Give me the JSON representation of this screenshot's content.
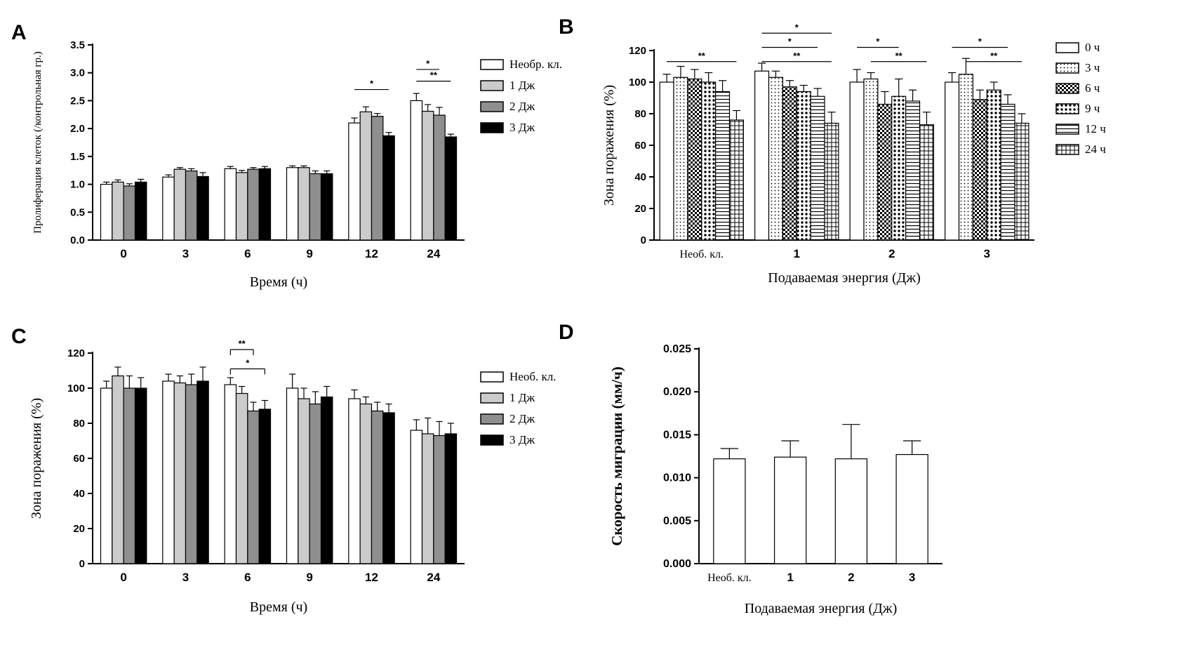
{
  "panels": {
    "a_label": "A",
    "b_label": "B",
    "c_label": "C",
    "d_label": "D"
  },
  "colors": {
    "control_fill": "#ffffff",
    "one_j_fill": "#cbcbcb",
    "two_j_fill": "#8f8f8f",
    "three_j_fill": "#000000",
    "axis": "#000000"
  },
  "chart_data": [
    {
      "panel": "A",
      "type": "bar",
      "title": "",
      "xlabel": "Время (ч)",
      "ylabel": "Пролиферация клеток (/контрольная гр.)",
      "ylim": [
        0,
        3.5
      ],
      "yticks": [
        "0.0",
        "0.5",
        "1.0",
        "1.5",
        "2.0",
        "2.5",
        "3.0",
        "3.5"
      ],
      "categories": [
        "0",
        "3",
        "6",
        "9",
        "12",
        "24"
      ],
      "series": [
        {
          "name": "Необр. кл.",
          "fill": "#ffffff",
          "values": [
            1.0,
            1.13,
            1.28,
            1.3,
            2.1,
            2.5
          ],
          "errors": [
            0.04,
            0.04,
            0.04,
            0.03,
            0.09,
            0.13
          ]
        },
        {
          "name": "1 Дж",
          "fill": "#cbcbcb",
          "values": [
            1.04,
            1.27,
            1.21,
            1.3,
            2.3,
            2.31
          ],
          "errors": [
            0.04,
            0.03,
            0.04,
            0.03,
            0.09,
            0.12
          ]
        },
        {
          "name": "2 Дж",
          "fill": "#8f8f8f",
          "values": [
            0.97,
            1.24,
            1.27,
            1.19,
            2.22,
            2.24
          ],
          "errors": [
            0.04,
            0.04,
            0.03,
            0.05,
            0.05,
            0.14
          ]
        },
        {
          "name": "3 Дж",
          "fill": "#000000",
          "values": [
            1.04,
            1.14,
            1.28,
            1.19,
            1.87,
            1.85
          ],
          "errors": [
            0.05,
            0.07,
            0.04,
            0.05,
            0.06,
            0.05
          ]
        }
      ],
      "significance": [
        {
          "group": 4,
          "from": 0,
          "to": 3,
          "y": 2.7,
          "label": "*"
        },
        {
          "group": 5,
          "from": 0,
          "to": 2,
          "y": 3.06,
          "label": "*"
        },
        {
          "group": 5,
          "from": 0,
          "to": 3,
          "y": 2.85,
          "label": "**"
        }
      ],
      "legend_position": "right"
    },
    {
      "panel": "B",
      "type": "bar",
      "title": "",
      "xlabel": "Подаваемая энергия (Дж)",
      "ylabel": "Зона поражения (%)",
      "ylim": [
        0,
        120
      ],
      "yticks": [
        "0",
        "20",
        "40",
        "60",
        "80",
        "100",
        "120"
      ],
      "categories": [
        "Необ. кл.",
        "1",
        "2",
        "3"
      ],
      "series": [
        {
          "name": "0 ч",
          "pattern": "solid",
          "values": [
            100,
            107,
            100,
            100
          ],
          "errors": [
            5,
            5,
            8,
            6
          ]
        },
        {
          "name": "3 ч",
          "pattern": "dots",
          "values": [
            103,
            103,
            102,
            105
          ],
          "errors": [
            7,
            4,
            4,
            10
          ]
        },
        {
          "name": "6 ч",
          "pattern": "checker",
          "values": [
            102,
            97,
            86,
            89
          ],
          "errors": [
            6,
            4,
            8,
            6
          ]
        },
        {
          "name": "9 ч",
          "pattern": "bigdots",
          "values": [
            100,
            94,
            91,
            95
          ],
          "errors": [
            6,
            4,
            11,
            5
          ]
        },
        {
          "name": "12 ч",
          "pattern": "hlines",
          "values": [
            94,
            91,
            88,
            86
          ],
          "errors": [
            7,
            5,
            7,
            6
          ]
        },
        {
          "name": "24 ч",
          "pattern": "grid",
          "values": [
            76,
            74,
            73,
            74
          ],
          "errors": [
            6,
            7,
            8,
            6
          ]
        }
      ],
      "significance": [
        {
          "group": 0,
          "from": 0,
          "to": 5,
          "y": 113,
          "label": "**"
        },
        {
          "group": 1,
          "from": 0,
          "to": 5,
          "y": 131,
          "label": "*"
        },
        {
          "group": 1,
          "from": 0,
          "to": 4,
          "y": 122,
          "label": "*"
        },
        {
          "group": 1,
          "from": 0,
          "to": 5,
          "y": 113,
          "label": "**"
        },
        {
          "group": 2,
          "from": 0,
          "to": 3,
          "y": 122,
          "label": "*"
        },
        {
          "group": 2,
          "from": 1,
          "to": 5,
          "y": 113,
          "label": "**"
        },
        {
          "group": 3,
          "from": 0,
          "to": 4,
          "y": 122,
          "label": "*"
        },
        {
          "group": 3,
          "from": 1,
          "to": 5,
          "y": 113,
          "label": "**"
        }
      ],
      "legend_position": "right"
    },
    {
      "panel": "C",
      "type": "bar",
      "title": "",
      "xlabel": "Время (ч)",
      "ylabel": "Зона поражения (%)",
      "ylim": [
        0,
        120
      ],
      "yticks": [
        "0",
        "20",
        "40",
        "60",
        "80",
        "100",
        "120"
      ],
      "categories": [
        "0",
        "3",
        "6",
        "9",
        "12",
        "24"
      ],
      "series": [
        {
          "name": "Необ. кл.",
          "fill": "#ffffff",
          "values": [
            100,
            104,
            102,
            100,
            94,
            76
          ],
          "errors": [
            4,
            4,
            4,
            8,
            5,
            6
          ]
        },
        {
          "name": "1 Дж",
          "fill": "#cbcbcb",
          "values": [
            107,
            103,
            97,
            94,
            91,
            74
          ],
          "errors": [
            5,
            4,
            4,
            6,
            4,
            9
          ]
        },
        {
          "name": "2 Дж",
          "fill": "#8f8f8f",
          "values": [
            100,
            102,
            87,
            91,
            87,
            73
          ],
          "errors": [
            7,
            6,
            5,
            7,
            5,
            8
          ]
        },
        {
          "name": "3 Дж",
          "fill": "#000000",
          "values": [
            100,
            104,
            88,
            95,
            86,
            74
          ],
          "errors": [
            6,
            8,
            5,
            6,
            5,
            6
          ]
        }
      ],
      "significance": [
        {
          "group": 2,
          "from": 0,
          "to": 2,
          "y": 122,
          "label": "**",
          "bracket": true
        },
        {
          "group": 2,
          "from": 0,
          "to": 3,
          "y": 111,
          "label": "*",
          "bracket": true
        }
      ],
      "legend_position": "right"
    },
    {
      "panel": "D",
      "type": "bar",
      "title": "",
      "xlabel": "Подаваемая энергия (Дж)",
      "ylabel": "Скорость миграции (мм/ч)",
      "ylim": [
        0,
        0.025
      ],
      "yticks": [
        "0.000",
        "0.005",
        "0.010",
        "0.015",
        "0.020",
        "0.025"
      ],
      "categories": [
        "Необ. кл.",
        "1",
        "2",
        "3"
      ],
      "series": [
        {
          "name": "",
          "fill": "#ffffff",
          "values": [
            0.0122,
            0.0124,
            0.0122,
            0.0127
          ],
          "errors": [
            0.0012,
            0.0019,
            0.004,
            0.0016
          ]
        }
      ],
      "significance": [],
      "legend_position": "none"
    }
  ]
}
